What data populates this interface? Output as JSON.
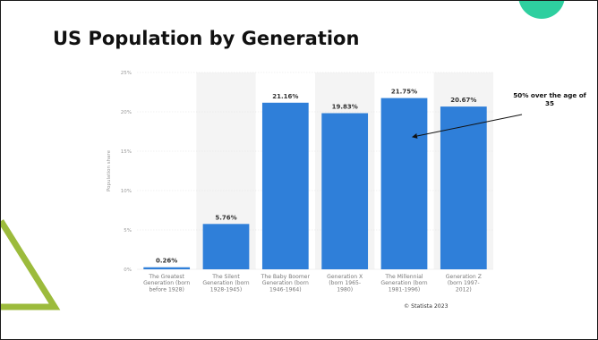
{
  "slide": {
    "title": "US Population by Generation",
    "annotation": "50% over the age of 35",
    "source": "© Statista 2023",
    "accent_teal": "#2ecf9f",
    "accent_green": "#9cbb3c",
    "bar_color": "#2f7fd9",
    "band_color": "#f4f4f4"
  },
  "chart_data": {
    "type": "bar",
    "title": "",
    "xlabel": "",
    "ylabel": "Population share",
    "ylim": [
      0,
      25
    ],
    "yticks": [
      0,
      5,
      10,
      15,
      20,
      25
    ],
    "ytick_labels": [
      "0%",
      "5%",
      "10%",
      "15%",
      "20%",
      "25%"
    ],
    "grid": true,
    "categories": [
      [
        "The Greatest",
        "Generation (born",
        "before 1928)"
      ],
      [
        "The Silent",
        "Generation (born",
        "1928-1945)"
      ],
      [
        "The Baby Boomer",
        "Generation (born",
        "1946-1964)"
      ],
      [
        "Generation X",
        "(born 1965-",
        "1980)"
      ],
      [
        "The Millennial",
        "Generation (born",
        "1981-1996)"
      ],
      [
        "Generation Z",
        "(born 1997-",
        "2012)"
      ]
    ],
    "values": [
      0.26,
      5.76,
      21.16,
      19.83,
      21.75,
      20.67
    ],
    "data_labels": [
      "0.26%",
      "5.76%",
      "21.16%",
      "19.83%",
      "21.75%",
      "20.67%"
    ]
  }
}
